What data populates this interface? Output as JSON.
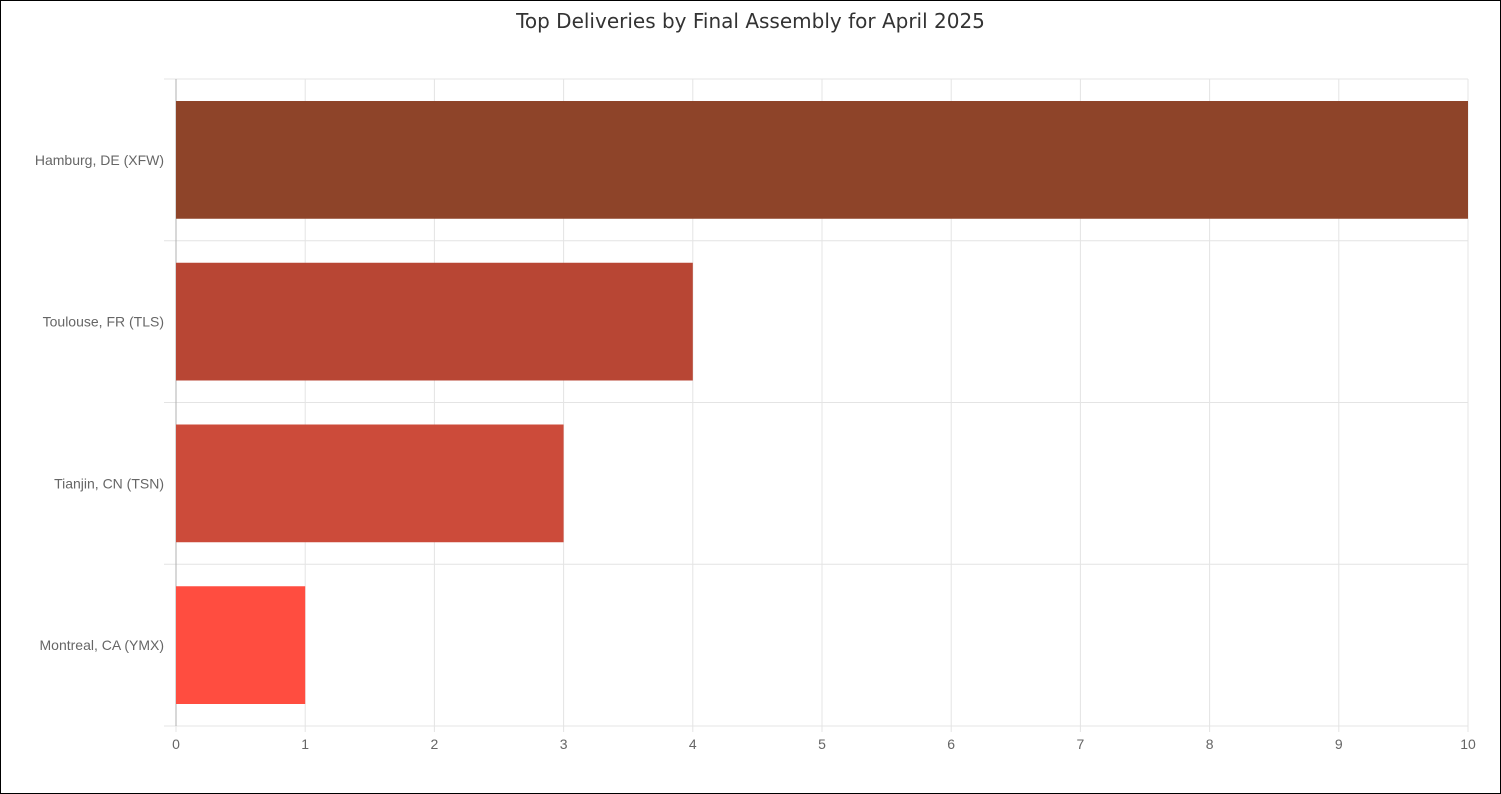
{
  "chart_data": {
    "type": "bar",
    "orientation": "horizontal",
    "title": "Top Deliveries by Final Assembly for April 2025",
    "categories": [
      "Hamburg, DE (XFW)",
      "Toulouse, FR (TLS)",
      "Tianjin, CN (TSN)",
      "Montreal, CA (YMX)"
    ],
    "values": [
      10,
      4,
      3,
      1
    ],
    "colors": [
      "#8e4429",
      "#b84634",
      "#cc4b3a",
      "#ff4d40"
    ],
    "xlim": [
      0,
      10
    ],
    "xticks": [
      0,
      1,
      2,
      3,
      4,
      5,
      6,
      7,
      8,
      9,
      10
    ],
    "grid": true,
    "legend": "none"
  }
}
